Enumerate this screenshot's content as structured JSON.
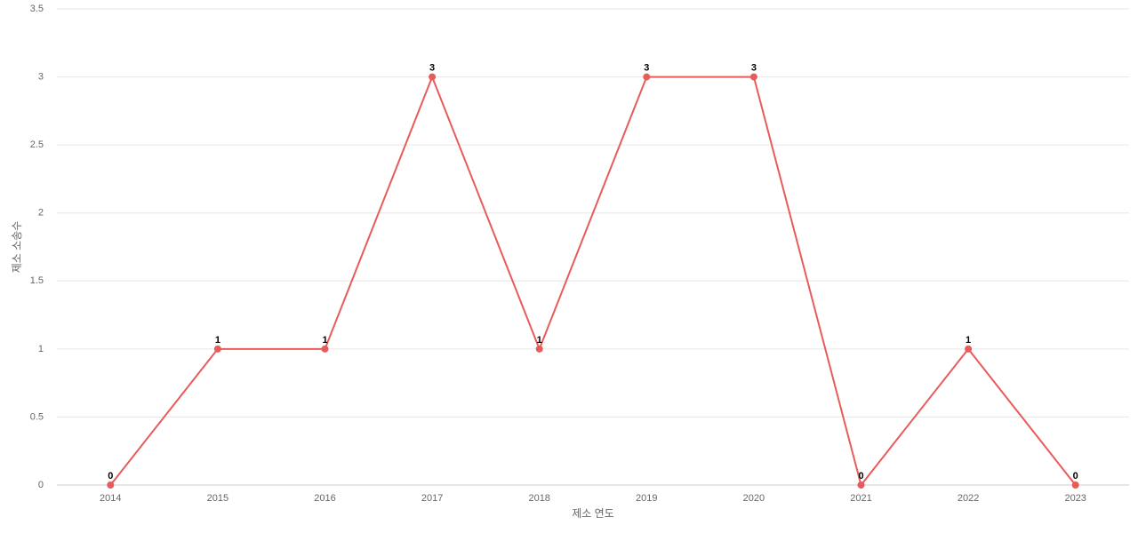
{
  "chart_data": {
    "type": "line",
    "x_label": "제소 연도",
    "y_label": "제소 소송수",
    "categories": [
      "2014",
      "2015",
      "2016",
      "2017",
      "2018",
      "2019",
      "2020",
      "2021",
      "2022",
      "2023"
    ],
    "values": [
      0,
      1,
      1,
      3,
      1,
      3,
      3,
      0,
      1,
      0
    ],
    "color": "#e85b5b",
    "ylim": [
      0,
      3.5
    ],
    "yticks": [
      0,
      0.5,
      1,
      1.5,
      2,
      2.5,
      3,
      3.5
    ],
    "grid": true
  }
}
